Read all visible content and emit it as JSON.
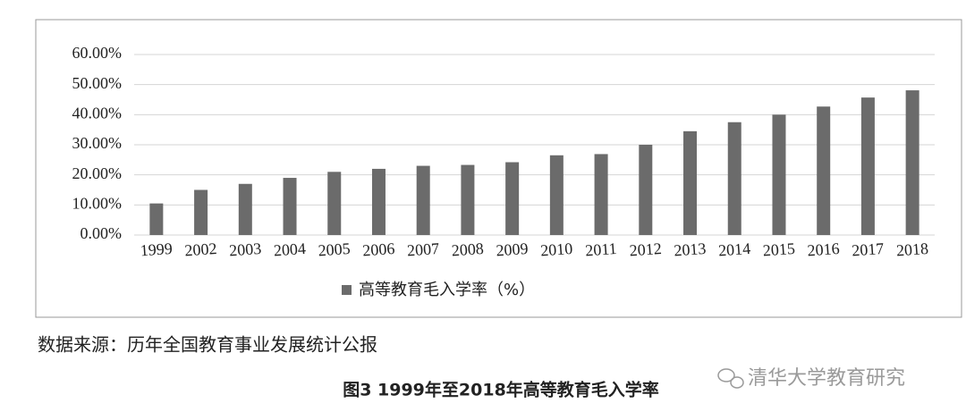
{
  "chart_data": {
    "type": "bar",
    "categories": [
      "1999",
      "2002",
      "2003",
      "2004",
      "2005",
      "2006",
      "2007",
      "2008",
      "2009",
      "2010",
      "2011",
      "2012",
      "2013",
      "2014",
      "2015",
      "2016",
      "2017",
      "2018"
    ],
    "series": [
      {
        "name": "高等教育毛入学率（%）",
        "color": "#6b6b6b",
        "values": [
          10.5,
          15,
          17,
          19,
          21,
          22,
          23,
          23.3,
          24.2,
          26.5,
          26.9,
          30,
          34.5,
          37.5,
          40,
          42.7,
          45.7,
          48.1
        ]
      }
    ],
    "ylim": [
      0,
      60
    ],
    "yticks": [
      {
        "value": 0,
        "label": "0.00%"
      },
      {
        "value": 10,
        "label": "10.00%"
      },
      {
        "value": 20,
        "label": "20.00%"
      },
      {
        "value": 30,
        "label": "30.00%"
      },
      {
        "value": 40,
        "label": "40.00%"
      },
      {
        "value": 50,
        "label": "50.00%"
      },
      {
        "value": 60,
        "label": "60.00%"
      }
    ],
    "grid": true,
    "legend": "bottom",
    "source": "数据来源：历年全国教育事业发展统计公报",
    "caption": "图3 1999年至2018年高等教育毛入学率",
    "watermark": "清华大学教育研究"
  }
}
